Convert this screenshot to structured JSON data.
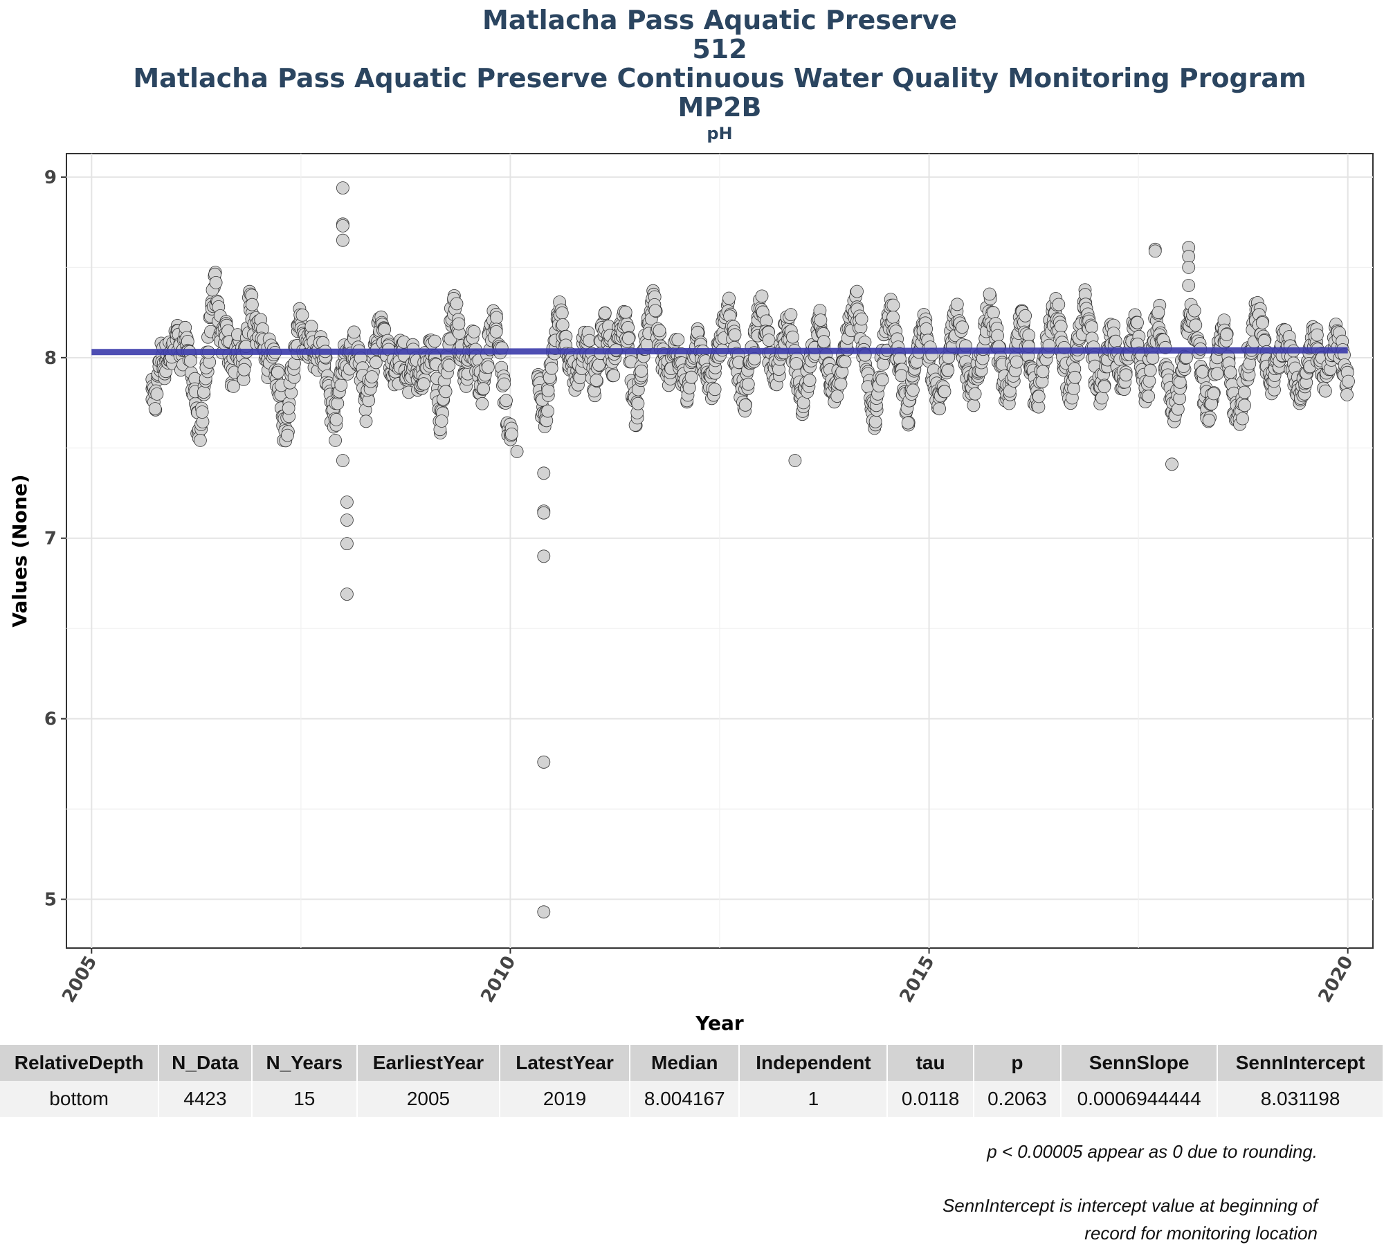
{
  "chart": {
    "title_lines": [
      "Matlacha Pass Aquatic Preserve",
      "512",
      "Matlacha Pass Aquatic Preserve Continuous Water Quality Monitoring Program",
      "MP2B"
    ],
    "subtitle": "pH"
  },
  "chart_data": {
    "type": "scatter",
    "xlabel": "Year",
    "ylabel": "Values (None)",
    "xlim": [
      2004.7,
      2020.3
    ],
    "ylim": [
      4.73,
      9.13
    ],
    "x_ticks": [
      "2005",
      "2010",
      "2015",
      "2020"
    ],
    "y_ticks": [
      "5",
      "6",
      "7",
      "8",
      "9"
    ],
    "grid": true,
    "point_color": "#d3d3d3",
    "point_edge_color": "#333333",
    "trend_color": "#3b3bab",
    "trend_line": {
      "x": [
        2005.0,
        2020.0
      ],
      "y": [
        8.031,
        8.041
      ]
    },
    "weekly_level": [
      7.8,
      7.78,
      7.76,
      7.82,
      7.92,
      7.98,
      8.02,
      8.0,
      7.95,
      8.0,
      8.05,
      8.03,
      7.98,
      8.0,
      8.06,
      8.1,
      8.12,
      8.08,
      8.02,
      7.96,
      8.04,
      8.1,
      8.12,
      8.06,
      7.98,
      7.92,
      7.88,
      7.85,
      7.75,
      7.62,
      7.55,
      7.6,
      7.72,
      7.82,
      7.9,
      7.96,
      8.05,
      8.15,
      8.25,
      8.35,
      8.4,
      8.35,
      8.25,
      8.18,
      8.12,
      8.1,
      8.14,
      8.18,
      8.1,
      8.02,
      7.95,
      7.9,
      7.92,
      8.0,
      8.06,
      8.1,
      8.05,
      7.98,
      7.95,
      8.0,
      8.1,
      8.2,
      8.3,
      8.32,
      8.25,
      8.2,
      8.15,
      8.12,
      8.18,
      8.15,
      8.1,
      8.05,
      8.0,
      7.95,
      8.0,
      8.05,
      8.08,
      8.02,
      7.96,
      7.92,
      7.88,
      7.85,
      7.8,
      7.7,
      7.6,
      7.55,
      7.62,
      7.75,
      7.85,
      7.9,
      7.95,
      8.0,
      8.1,
      8.2,
      8.25,
      8.2,
      8.1,
      8.05,
      8.02,
      8.08,
      8.12,
      8.1,
      8.05,
      8.0,
      7.98,
      8.0,
      8.04,
      8.06,
      8.04,
      8.0,
      7.96,
      7.92,
      7.88,
      7.8,
      7.72,
      7.65,
      7.62,
      7.7,
      7.8,
      7.85,
      7.9,
      7.95,
      8.0,
      7.96,
      7.98,
      8.0,
      8.02,
      8.05,
      8.08,
      8.06,
      8.04,
      8.02,
      8.0,
      7.95,
      7.88,
      7.8,
      7.72,
      7.78,
      7.85,
      7.9,
      7.95,
      8.0,
      8.05,
      8.1,
      8.15,
      8.2,
      8.22,
      8.15,
      8.1,
      8.05,
      8.0,
      7.98,
      7.95,
      7.92,
      7.9,
      7.88,
      7.92,
      7.98,
      8.02,
      8.05,
      8.02,
      7.95,
      7.88,
      7.85,
      7.9,
      7.96,
      8.0,
      7.98,
      7.94,
      7.9,
      7.86,
      7.84,
      7.88,
      7.92,
      7.96,
      8.0,
      8.02,
      8.04,
      8.06,
      8.02,
      7.96,
      7.85,
      7.72,
      7.65,
      7.68,
      7.78,
      7.88,
      7.95,
      8.0,
      8.1,
      8.2,
      8.28,
      8.3,
      8.25,
      8.18,
      8.12,
      8.05,
      8.0,
      7.95,
      7.92,
      7.95,
      8.0,
      8.05,
      8.08,
      8.1,
      8.06,
      8.0,
      7.94,
      7.88,
      7.85,
      7.82,
      7.88,
      7.95,
      8.02,
      8.08,
      8.12,
      8.15,
      8.18,
      8.2,
      8.15,
      8.1,
      8.04,
      7.98,
      7.9,
      7.8,
      7.7,
      7.62,
      7.6,
      7.65,
      7.75,
      7.85,
      7.95,
      8.05,
      8.15,
      8.25,
      8.35,
      8.4,
      8.38,
      8.3,
      8.22,
      8.15,
      8.1,
      8.05,
      8.0,
      7.95,
      7.88,
      7.82,
      7.75,
      7.7,
      7.65,
      7.7,
      7.78,
      7.85,
      7.92,
      7.98,
      8.05,
      8.12,
      8.18,
      8.22,
      8.25,
      8.2,
      8.15,
      8.1,
      8.05,
      8.02,
      8.0,
      7.98,
      7.95,
      7.92,
      7.9,
      7.88,
      7.92,
      7.96,
      8.0,
      8.05,
      8.1,
      8.12,
      8.08,
      8.02,
      7.96,
      7.9,
      7.85,
      7.88,
      7.95,
      8.02,
      8.1,
      8.15,
      8.18,
      8.2,
      8.15,
      8.1,
      8.05,
      8.0,
      7.98,
      8.02,
      8.06,
      8.1,
      8.14,
      8.18,
      8.2,
      8.22,
      8.18,
      8.12,
      8.05,
      7.95,
      7.85,
      7.75,
      7.7,
      7.72,
      7.8,
      7.88,
      7.95,
      8.02,
      8.08,
      8.12,
      8.15,
      8.2,
      8.25,
      8.3,
      8.28,
      8.22,
      8.15,
      8.1,
      8.05,
      8.0,
      7.96,
      7.92,
      7.9,
      7.92,
      7.96,
      8.0,
      8.04,
      8.06,
      8.05,
      8.02,
      7.98,
      7.95,
      7.9,
      7.85,
      7.82,
      7.8,
      7.85,
      7.9,
      7.95,
      8.0,
      8.05,
      8.1,
      8.12,
      8.1,
      8.06,
      8.02,
      7.98,
      7.94,
      7.9,
      7.86,
      7.84,
      7.86,
      7.9,
      7.95,
      8.0,
      8.04,
      8.08,
      8.12,
      8.16,
      8.2,
      8.22,
      8.25,
      8.2,
      8.15,
      8.1,
      8.05,
      8.0,
      7.95,
      7.9,
      7.85,
      7.8,
      7.76,
      7.8,
      7.85,
      7.9,
      7.95,
      8.0,
      8.05,
      8.1,
      8.15,
      8.2,
      8.25,
      8.28,
      8.25,
      8.2,
      8.15,
      8.1,
      8.05,
      8.0,
      7.96,
      7.92,
      7.9,
      7.92,
      7.96,
      8.0,
      8.05,
      8.1,
      8.14,
      8.18,
      8.2,
      8.16,
      8.1,
      8.04,
      7.98,
      7.92,
      7.86,
      7.8,
      7.75,
      7.72,
      7.75,
      7.8,
      7.85,
      7.9,
      7.95,
      8.0,
      8.05,
      8.1,
      8.15,
      8.18,
      8.2,
      8.15,
      8.1,
      8.05,
      8.0,
      7.96,
      7.92,
      7.88,
      7.85,
      7.82,
      7.8,
      7.84,
      7.88,
      7.92,
      7.96,
      8.0,
      8.04,
      8.08,
      8.12,
      8.16,
      8.2,
      8.24,
      8.28,
      8.3,
      8.26,
      8.2,
      8.14,
      8.08,
      8.02,
      7.96,
      7.9,
      7.84,
      7.78,
      7.72,
      7.68,
      7.7,
      7.76,
      7.82,
      7.88,
      7.94,
      8.0,
      8.06,
      8.12,
      8.18,
      8.22,
      8.25,
      8.22,
      8.16,
      8.1,
      8.04,
      7.98,
      7.92,
      7.86,
      7.8,
      7.75,
      7.72,
      7.7,
      7.74,
      7.8,
      7.86,
      7.92,
      7.98,
      8.04,
      8.1,
      8.16,
      8.2,
      8.22,
      8.18,
      8.12,
      8.06,
      8.0,
      7.94,
      7.88,
      7.82,
      7.78,
      7.74,
      7.72,
      7.76,
      7.82,
      7.88,
      7.94,
      8.0,
      8.06,
      8.1,
      8.14,
      8.18,
      8.2,
      8.22,
      8.2,
      8.15,
      8.1,
      8.05,
      8.0,
      7.95,
      7.9,
      7.85,
      7.8,
      7.78,
      7.82,
      7.86,
      7.9,
      7.95,
      8.0,
      8.05,
      8.1,
      8.15,
      8.2,
      8.25,
      8.28,
      8.25,
      8.2,
      8.15,
      8.1,
      8.05,
      8.0,
      7.95,
      7.9,
      7.85,
      7.8,
      7.78,
      7.8,
      7.85,
      7.9,
      7.95,
      8.0,
      8.05,
      8.1,
      8.15,
      8.2,
      8.22,
      8.18,
      8.12,
      8.06,
      8.0,
      7.94,
      7.88,
      7.82,
      7.78,
      7.76,
      7.8,
      7.85,
      7.9,
      7.95,
      8.0,
      8.05,
      8.1,
      8.15,
      8.2,
      8.25,
      8.28,
      8.26,
      8.22,
      8.16,
      8.1,
      8.04,
      7.98,
      7.92,
      7.86,
      7.82,
      7.8,
      7.84,
      7.9,
      7.96,
      8.02,
      8.08,
      8.14,
      8.2,
      8.26,
      8.3,
      8.28,
      8.22,
      8.16,
      8.1,
      8.04,
      7.98,
      7.92,
      7.86,
      7.82,
      7.8,
      7.84,
      7.9,
      7.96,
      8.02,
      8.06,
      8.1,
      8.12,
      8.1,
      8.06,
      8.02,
      7.98,
      7.94,
      7.9,
      7.88,
      7.9,
      7.94,
      7.98,
      8.02,
      8.06,
      8.1,
      8.14,
      8.16,
      8.12,
      8.06,
      8.0,
      7.94,
      7.88,
      7.84,
      7.82,
      7.86,
      7.92,
      7.98,
      8.04,
      8.1,
      8.16,
      8.2,
      8.22,
      8.18,
      8.12,
      8.06,
      8.0,
      7.94,
      7.88,
      7.82,
      7.76,
      7.7,
      7.66,
      7.7,
      7.76,
      7.82,
      7.88,
      7.94,
      8.0,
      8.06,
      8.12,
      8.18,
      8.22,
      8.26,
      8.24,
      8.18,
      8.12,
      8.06,
      8.0,
      7.94,
      7.88,
      7.82,
      7.76,
      7.72,
      7.7,
      7.74,
      7.8,
      7.86,
      7.92,
      7.98,
      8.04,
      8.1,
      8.14,
      8.16,
      8.12,
      8.06,
      8.0,
      7.94,
      7.88,
      7.82,
      7.76,
      7.7,
      7.66,
      7.64,
      7.68,
      7.74,
      7.8,
      7.86,
      7.92,
      7.98,
      8.04,
      8.1,
      8.16,
      8.22,
      8.26,
      8.28,
      8.24,
      8.18,
      8.12,
      8.06,
      8.0,
      7.96,
      7.92,
      7.88,
      7.86,
      7.88,
      7.92,
      7.96,
      8.0,
      8.04,
      8.08,
      8.12,
      8.14,
      8.12,
      8.08,
      8.04,
      8.0,
      7.96,
      7.92,
      7.88,
      7.84,
      7.82,
      7.8,
      7.82,
      7.86,
      7.9,
      7.94,
      7.98,
      8.02,
      8.06,
      8.1,
      8.12,
      8.1,
      8.06,
      8.02,
      7.98,
      7.94,
      7.9,
      7.88,
      7.9,
      7.94,
      7.98,
      8.02,
      8.06,
      8.1,
      8.12,
      8.1,
      8.06,
      8.02,
      7.98,
      7.94,
      7.9,
      7.86
    ],
    "outliers": [
      {
        "x": 2008.0,
        "y": 8.94
      },
      {
        "x": 2008.0,
        "y": 8.74
      },
      {
        "x": 2008.0,
        "y": 8.73
      },
      {
        "x": 2008.0,
        "y": 8.65
      },
      {
        "x": 2008.0,
        "y": 7.43
      },
      {
        "x": 2008.05,
        "y": 7.2
      },
      {
        "x": 2008.05,
        "y": 7.1
      },
      {
        "x": 2008.05,
        "y": 6.97
      },
      {
        "x": 2008.05,
        "y": 6.69
      },
      {
        "x": 2010.08,
        "y": 7.48
      },
      {
        "x": 2010.4,
        "y": 7.36
      },
      {
        "x": 2010.4,
        "y": 7.15
      },
      {
        "x": 2010.4,
        "y": 7.14
      },
      {
        "x": 2010.4,
        "y": 6.9
      },
      {
        "x": 2010.4,
        "y": 5.76
      },
      {
        "x": 2010.4,
        "y": 4.93
      },
      {
        "x": 2017.7,
        "y": 8.6
      },
      {
        "x": 2017.7,
        "y": 8.59
      },
      {
        "x": 2018.1,
        "y": 8.61
      },
      {
        "x": 2018.1,
        "y": 8.56
      },
      {
        "x": 2018.1,
        "y": 8.5
      },
      {
        "x": 2018.1,
        "y": 8.4
      },
      {
        "x": 2013.4,
        "y": 7.43
      },
      {
        "x": 2017.9,
        "y": 7.41
      }
    ]
  },
  "table": {
    "headers": [
      "RelativeDepth",
      "N_Data",
      "N_Years",
      "EarliestYear",
      "LatestYear",
      "Median",
      "Independent",
      "tau",
      "p",
      "SennSlope",
      "SennIntercept"
    ],
    "row": [
      "bottom",
      "4423",
      "15",
      "2005",
      "2019",
      "8.004167",
      "1",
      "0.0118",
      "0.2063",
      "0.0006944444",
      "8.031198"
    ]
  },
  "notes": {
    "line1": "p < 0.00005 appear as 0 due to rounding.",
    "line2a": "SennIntercept is intercept value at beginning of",
    "line2b": "record for monitoring location"
  }
}
